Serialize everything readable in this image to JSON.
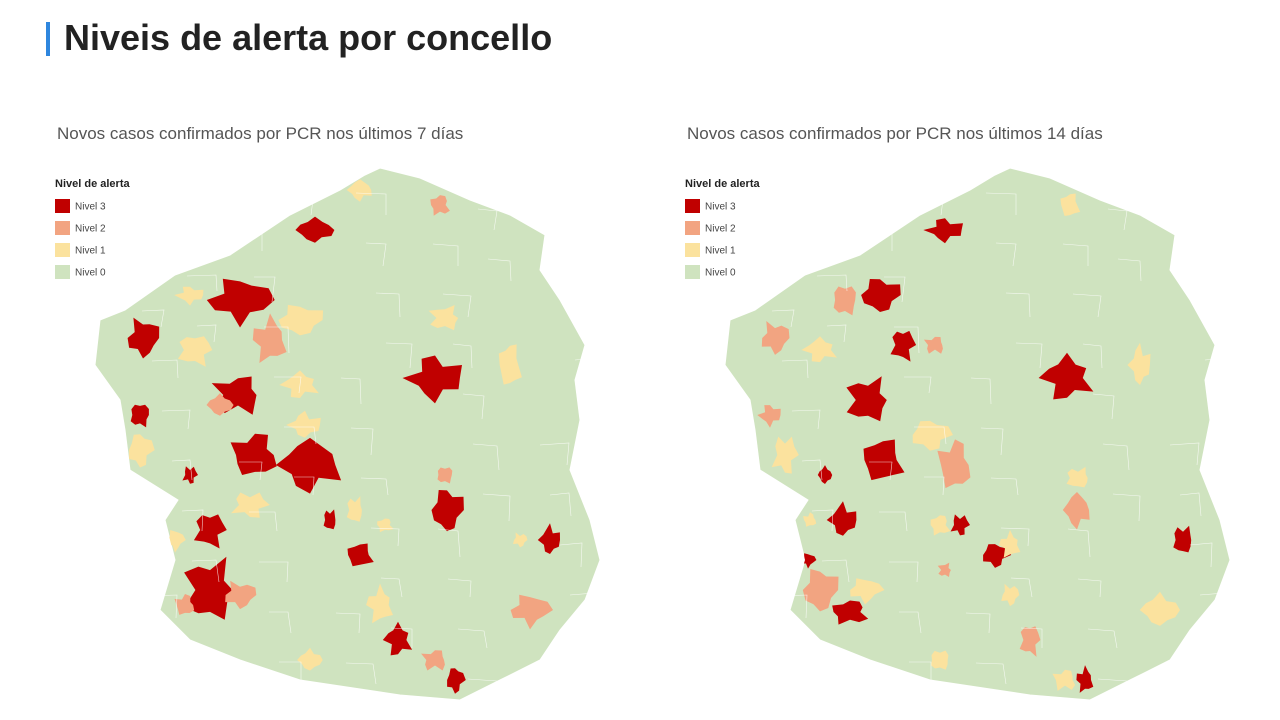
{
  "header": {
    "title": "Niveis de alerta por concello"
  },
  "maps": [
    {
      "subtitle": "Novos casos confirmados por PCR nos últimos 7 días",
      "legend": {
        "title": "Nivel de alerta",
        "items": [
          {
            "label": "Nivel 3",
            "color": "#c00000"
          },
          {
            "label": "Nivel 2",
            "color": "#f2a481"
          },
          {
            "label": "Nivel 1",
            "color": "#fbe29e"
          },
          {
            "label": "Nivel 0",
            "color": "#cfe3bf"
          }
        ]
      }
    },
    {
      "subtitle": "Novos casos confirmados por PCR nos últimos 14 días",
      "legend": {
        "title": "Nivel de alerta",
        "items": [
          {
            "label": "Nivel 3",
            "color": "#c00000"
          },
          {
            "label": "Nivel 2",
            "color": "#f2a481"
          },
          {
            "label": "Nivel 1",
            "color": "#fbe29e"
          },
          {
            "label": "Nivel 0",
            "color": "#cfe3bf"
          }
        ]
      }
    }
  ]
}
